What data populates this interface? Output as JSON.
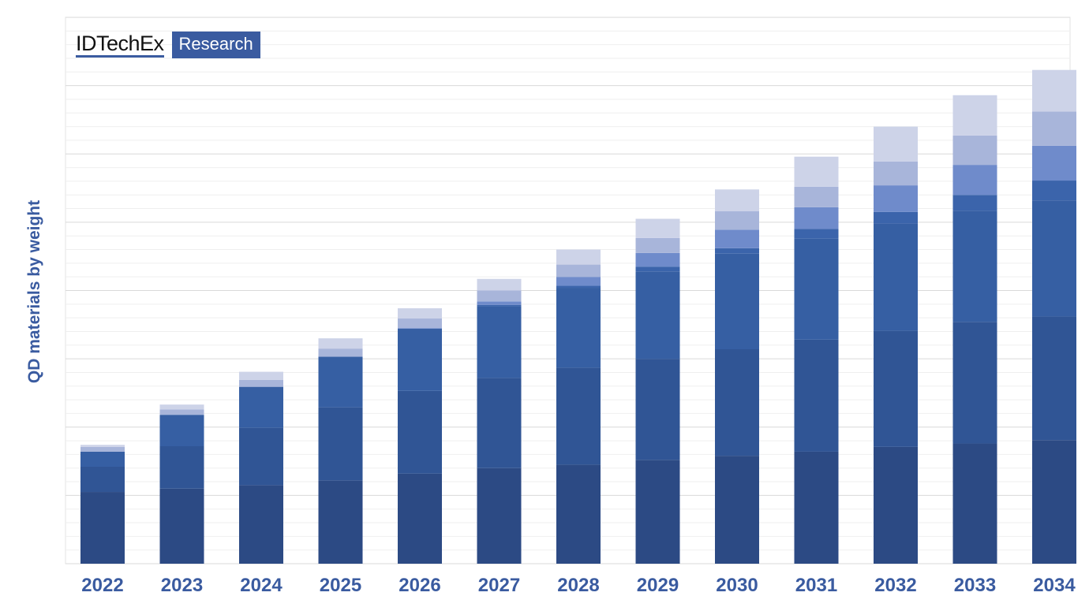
{
  "logo": {
    "main": "IDTechEx",
    "sub": "Research"
  },
  "chart_data": {
    "type": "bar",
    "stacked": true,
    "title": "",
    "xlabel": "",
    "ylabel": "QD materials by weight",
    "ylim": [
      0,
      8
    ],
    "y_unit_note_hidden": null,
    "grid": true,
    "y_tick_labels_shown": false,
    "categories": [
      "2022",
      "2023",
      "2024",
      "2025",
      "2026",
      "2027",
      "2028",
      "2029",
      "2030",
      "2031",
      "2032",
      "2033",
      "2034"
    ],
    "series": [
      {
        "color": "#2c4a84",
        "values": [
          1.05,
          1.1,
          1.15,
          1.22,
          1.32,
          1.4,
          1.45,
          1.52,
          1.58,
          1.64,
          1.71,
          1.76,
          1.81
        ]
      },
      {
        "color": "#305595",
        "values": [
          0.37,
          0.62,
          0.84,
          1.07,
          1.21,
          1.32,
          1.42,
          1.48,
          1.56,
          1.64,
          1.7,
          1.78,
          1.81
        ]
      },
      {
        "color": "#365fa3",
        "values": [
          0.22,
          0.46,
          0.6,
          0.74,
          0.91,
          1.05,
          1.17,
          1.28,
          1.4,
          1.48,
          1.57,
          1.63,
          1.7
        ]
      },
      {
        "color": "#3b64ab",
        "values": [
          0,
          0,
          0,
          0,
          0,
          0.02,
          0.03,
          0.07,
          0.08,
          0.14,
          0.17,
          0.23,
          0.29
        ]
      },
      {
        "color": "#6f8bcb",
        "values": [
          0,
          0,
          0,
          0,
          0.01,
          0.05,
          0.13,
          0.2,
          0.27,
          0.32,
          0.39,
          0.44,
          0.51
        ]
      },
      {
        "color": "#a8b5da",
        "values": [
          0.07,
          0.08,
          0.1,
          0.12,
          0.14,
          0.16,
          0.18,
          0.22,
          0.27,
          0.3,
          0.35,
          0.43,
          0.5
        ]
      },
      {
        "color": "#cdd3e8",
        "values": [
          0.03,
          0.07,
          0.12,
          0.15,
          0.15,
          0.17,
          0.22,
          0.28,
          0.32,
          0.44,
          0.51,
          0.59,
          0.61
        ]
      }
    ],
    "colors": {
      "label": "#3a5ba0",
      "grid_major": "#d9d9d9",
      "grid_minor": "#efefef"
    }
  }
}
